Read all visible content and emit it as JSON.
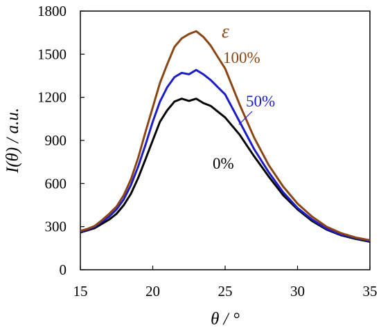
{
  "chart_data": {
    "type": "line",
    "title": "",
    "xlabel": "θ / °",
    "ylabel": "I(θ) / a.u.",
    "xlim": [
      15,
      35
    ],
    "ylim": [
      0,
      1800
    ],
    "xticks": [
      15,
      20,
      25,
      30,
      35
    ],
    "yticks": [
      0,
      300,
      600,
      900,
      1200,
      1500,
      1800
    ],
    "grid": false,
    "legend_title": "ε",
    "series": [
      {
        "name": "0%",
        "color": "#000000",
        "x": [
          15,
          15.5,
          16,
          16.5,
          17,
          17.5,
          18,
          18.5,
          19,
          19.5,
          20,
          20.5,
          21,
          21.5,
          22,
          22.5,
          23,
          23.5,
          24,
          24.5,
          25,
          26,
          27,
          28,
          29,
          30,
          31,
          32,
          33,
          34,
          35
        ],
        "values": [
          260,
          275,
          290,
          320,
          350,
          390,
          450,
          530,
          640,
          770,
          900,
          1030,
          1110,
          1170,
          1190,
          1175,
          1190,
          1160,
          1140,
          1100,
          1060,
          940,
          790,
          650,
          520,
          420,
          340,
          280,
          240,
          215,
          195
        ]
      },
      {
        "name": "50%",
        "color": "#1c1cc8",
        "x": [
          15,
          15.5,
          16,
          16.5,
          17,
          17.5,
          18,
          18.5,
          19,
          19.5,
          20,
          20.5,
          21,
          21.5,
          22,
          22.5,
          23,
          23.5,
          24,
          24.5,
          25,
          26,
          27,
          28,
          29,
          30,
          31,
          32,
          33,
          34,
          35
        ],
        "values": [
          265,
          280,
          300,
          335,
          370,
          420,
          490,
          590,
          720,
          870,
          1030,
          1170,
          1270,
          1340,
          1370,
          1360,
          1390,
          1360,
          1320,
          1270,
          1220,
          1030,
          840,
          680,
          540,
          430,
          350,
          285,
          245,
          220,
          200
        ]
      },
      {
        "name": "100%",
        "color": "#8b4513",
        "x": [
          15,
          15.5,
          16,
          16.5,
          17,
          17.5,
          18,
          18.5,
          19,
          19.5,
          20,
          20.5,
          21,
          21.5,
          22,
          22.5,
          23,
          23.5,
          24,
          24.5,
          25,
          26,
          27,
          28,
          29,
          30,
          31,
          32,
          33,
          34,
          35
        ],
        "values": [
          270,
          285,
          305,
          345,
          390,
          440,
          520,
          630,
          780,
          960,
          1130,
          1300,
          1430,
          1550,
          1610,
          1640,
          1660,
          1620,
          1560,
          1480,
          1400,
          1150,
          920,
          730,
          580,
          460,
          370,
          300,
          255,
          225,
          205
        ]
      }
    ]
  }
}
